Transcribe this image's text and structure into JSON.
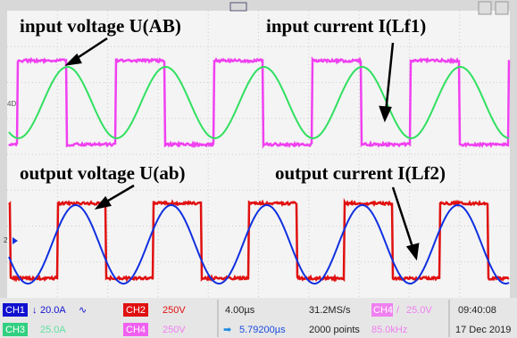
{
  "annotations": [
    "input voltage U(AB)",
    "input current  I(Lf1)",
    "output voltage U(ab)",
    "output current  I(Lf2)"
  ],
  "markers": [
    "4D",
    "2"
  ],
  "status": {
    "ch1": {
      "label": "CH1",
      "scale": "20.0A"
    },
    "ch2": {
      "label": "CH2",
      "scale": "250V"
    },
    "ch3": {
      "label": "CH3",
      "scale": "25.0A"
    },
    "ch4": {
      "label": "CH4",
      "scale": "250V"
    },
    "timebase": "4.00µs",
    "delay": "5.79200µs",
    "sample_rate": "31.2MS/s",
    "points": "2000 points",
    "trigger": {
      "source": "CH4",
      "level": "25.0V",
      "frequency": "85.0kHz"
    },
    "time": "09:40:08",
    "date": "17 Dec 2019"
  }
}
